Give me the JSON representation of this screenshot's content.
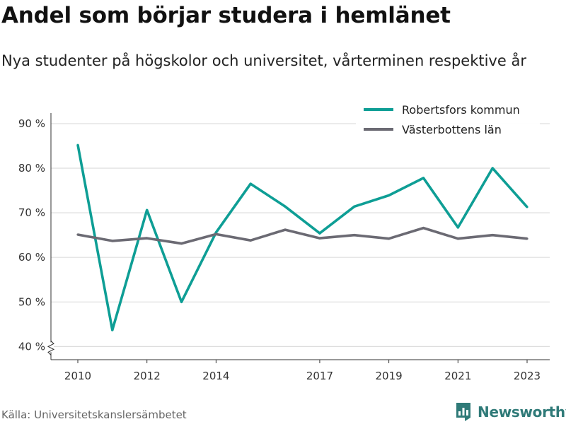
{
  "header": {
    "title": "Andel som börjar studera i hemlänet",
    "subtitle": "Nya studenter på högskolor och universitet, vårterminen respektive år"
  },
  "footer": {
    "source": "Källa: Universitetskanslersämbetet",
    "brand": "Newsworthy",
    "brand_icon": "bar-chart-logo-icon"
  },
  "colors": {
    "robertsfors": "#0e9e95",
    "vasterbotten": "#6b6a73",
    "grid": "#dddddd",
    "brand": "#2f7a78"
  },
  "chart_data": {
    "type": "line",
    "x": [
      2010,
      2011,
      2012,
      2013,
      2014,
      2015,
      2016,
      2017,
      2018,
      2019,
      2020,
      2021,
      2022,
      2023
    ],
    "x_tick_values": [
      2010,
      2012,
      2014,
      2017,
      2019,
      2021,
      2023
    ],
    "x_tick_labels": [
      "2010",
      "2012",
      "2014",
      "2017",
      "2019",
      "2021",
      "2023"
    ],
    "y_tick_values": [
      40,
      50,
      60,
      70,
      80,
      90
    ],
    "y_tick_labels": [
      "40 %",
      "50 %",
      "60 %",
      "70 %",
      "80 %",
      "90 %"
    ],
    "ylim": [
      38,
      93
    ],
    "y_axis_break": true,
    "grid": true,
    "legend_position": "top-right",
    "series": [
      {
        "name": "Robertsfors kommun",
        "color": "#0e9e95",
        "values": [
          85.2,
          43.7,
          70.6,
          50.0,
          65.6,
          76.5,
          71.4,
          65.4,
          71.4,
          73.9,
          77.8,
          66.7,
          80.0,
          71.3
        ]
      },
      {
        "name": "Västerbottens län",
        "color": "#6b6a73",
        "values": [
          65.1,
          63.7,
          64.3,
          63.1,
          65.2,
          63.8,
          66.2,
          64.3,
          65.0,
          64.2,
          66.6,
          64.2,
          65.0,
          64.2
        ]
      }
    ]
  }
}
